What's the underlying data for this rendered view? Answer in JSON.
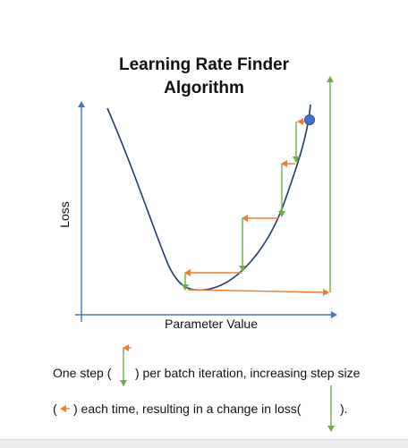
{
  "title": {
    "line1": "Learning Rate Finder",
    "line2": "Algorithm"
  },
  "axes": {
    "ylabel": "Loss",
    "xlabel": "Parameter Value"
  },
  "caption": {
    "line1_a": "One step (",
    "line1_b": ")  per batch iteration, increasing step size",
    "line2_a": "(",
    "line2_b": ") each time,  resulting in a change in loss(",
    "line2_c": ")."
  },
  "colors": {
    "axis": "#4472c4",
    "curve": "#1f3a6e",
    "step_horizontal": "#ed7d31",
    "step_vertical": "#70ad47",
    "point_fill": "#4472c4",
    "point_stroke": "#2f528f"
  }
}
